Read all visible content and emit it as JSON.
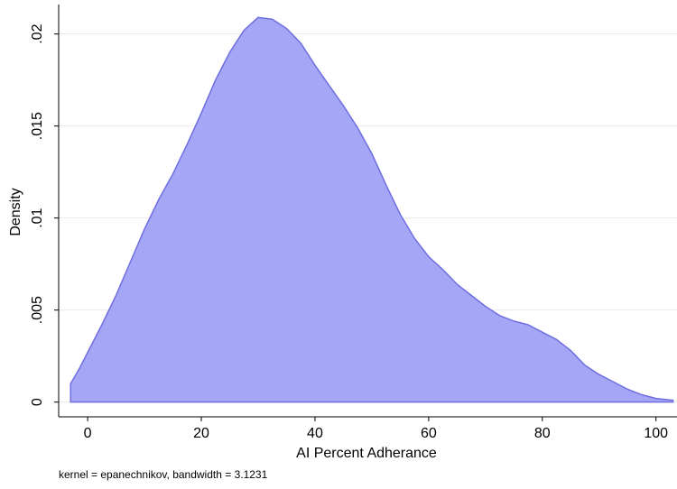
{
  "chart_data": {
    "type": "area",
    "x_label": "AI Percent Adherance",
    "y_label": "Density",
    "note": "kernel = epanechnikov, bandwidth = 3.1231",
    "x": [
      -3,
      -1.5,
      0,
      2.5,
      5,
      7.5,
      10,
      12.5,
      15,
      17.5,
      20,
      22.5,
      25,
      27.5,
      30,
      32.5,
      35,
      37.5,
      40,
      42.5,
      45,
      47.5,
      50,
      52.5,
      55,
      57.5,
      60,
      62.5,
      65,
      67.5,
      70,
      72.5,
      75,
      77.5,
      80,
      82.5,
      85,
      87.5,
      90,
      92.5,
      95,
      97.5,
      100,
      103
    ],
    "values": [
      0.001,
      0.0018,
      0.0027,
      0.0042,
      0.0058,
      0.0076,
      0.0094,
      0.011,
      0.0124,
      0.014,
      0.0157,
      0.0175,
      0.019,
      0.0202,
      0.0209,
      0.0208,
      0.0203,
      0.0195,
      0.0183,
      0.0172,
      0.0161,
      0.0149,
      0.0135,
      0.0118,
      0.0102,
      0.0089,
      0.0079,
      0.0072,
      0.0064,
      0.0058,
      0.0052,
      0.0047,
      0.0044,
      0.0042,
      0.0038,
      0.0034,
      0.0028,
      0.002,
      0.0015,
      0.0011,
      0.0007,
      0.0004,
      0.0002,
      0.0001
    ],
    "color": "#a6a6f7",
    "line_color": "#6e6ee0",
    "xlim": [
      -5.1,
      103.7
    ],
    "ylim": [
      -0.0008,
      0.0216
    ],
    "xticks": [
      0,
      20,
      40,
      60,
      80,
      100
    ],
    "yticks": [
      0,
      {
        "value": 0.005,
        "label": ".005"
      },
      {
        "value": 0.01,
        "label": ".01"
      },
      {
        "value": 0.015,
        "label": ".015"
      },
      {
        "value": 0.02,
        "label": ".02"
      }
    ],
    "grid": true
  }
}
